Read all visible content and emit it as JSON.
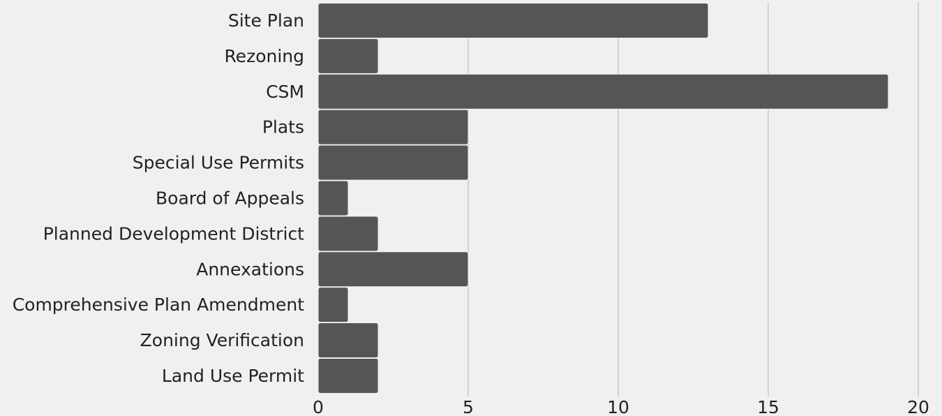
{
  "chart_data": {
    "type": "bar",
    "orientation": "horizontal",
    "title": "",
    "xlabel": "",
    "ylabel": "",
    "categories": [
      "Site Plan",
      "Rezoning",
      "CSM",
      "Plats",
      "Special Use Permits",
      "Board of Appeals",
      "Planned Development District",
      "Annexations",
      "Comprehensive Plan Amendment",
      "Zoning Verification",
      "Land Use Permit"
    ],
    "values": [
      13,
      2,
      19,
      5,
      5,
      1,
      2,
      5,
      1,
      2,
      2
    ],
    "xlim": [
      0,
      20
    ],
    "xticks": [
      "0",
      "5",
      "10",
      "15",
      "20"
    ],
    "grid": "vertical",
    "legend": "none",
    "bar_color": "#555555",
    "background_color": "#f0f0f0",
    "grid_color": "#c8c8c8"
  }
}
